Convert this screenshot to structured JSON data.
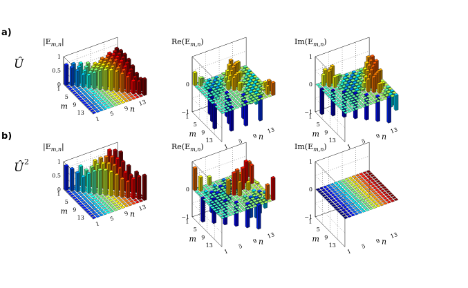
{
  "figure": {
    "row_labels": [
      {
        "letter": "a)",
        "operator": "Û"
      },
      {
        "letter": "b)",
        "operator": "Û",
        "superscript": "2"
      }
    ]
  },
  "chart_data": [
    {
      "type": "bar3d",
      "row": 0,
      "col": 0,
      "title": "|E",
      "title_sub": "m,n",
      "title_suffix": "|",
      "zticks": [
        "1",
        "0.5",
        "0"
      ],
      "zlim": [
        0,
        1
      ],
      "m_ticks": [
        "1",
        "5",
        "9",
        "13"
      ],
      "n_ticks": [
        "1",
        "5",
        "9",
        "13"
      ],
      "xlabel": "m",
      "ylabel": "n",
      "pattern": "U_abs",
      "colormap": "jet"
    },
    {
      "type": "bar3d",
      "row": 0,
      "col": 1,
      "title": "Re(E",
      "title_sub": "m,n",
      "title_suffix": ")",
      "zticks": [
        "0",
        "−1"
      ],
      "zlim": [
        -1,
        1
      ],
      "m_ticks": [
        "1",
        "5",
        "9",
        "13"
      ],
      "n_ticks": [
        "1",
        "5",
        "9",
        "13"
      ],
      "xlabel": "m",
      "ylabel": "n",
      "pattern": "U_re",
      "colormap": "jet"
    },
    {
      "type": "bar3d",
      "row": 0,
      "col": 2,
      "title": "Im(E",
      "title_sub": "m,n",
      "title_suffix": ")",
      "zticks": [
        "1",
        "0",
        "−1"
      ],
      "zlim": [
        -1,
        1
      ],
      "m_ticks": [
        "1",
        "5",
        "9",
        "13"
      ],
      "n_ticks": [
        "1",
        "5",
        "9",
        "13"
      ],
      "xlabel": "m",
      "ylabel": "n",
      "pattern": "U_im",
      "colormap": "jet"
    },
    {
      "type": "bar3d",
      "row": 1,
      "col": 0,
      "title": "|E",
      "title_sub": "m,n",
      "title_suffix": "|",
      "zticks": [
        "1",
        "0.5",
        "0"
      ],
      "zlim": [
        0,
        1
      ],
      "m_ticks": [
        "1",
        "5",
        "9",
        "13"
      ],
      "n_ticks": [
        "1",
        "5",
        "9",
        "13"
      ],
      "xlabel": "m",
      "ylabel": "n",
      "pattern": "U2_abs",
      "colormap": "jet"
    },
    {
      "type": "bar3d",
      "row": 1,
      "col": 1,
      "title": "Re(E",
      "title_sub": "m,n",
      "title_suffix": ")",
      "zticks": [
        "0",
        "−1"
      ],
      "zlim": [
        -1,
        1
      ],
      "m_ticks": [
        "1",
        "5",
        "9",
        "13"
      ],
      "n_ticks": [
        "1",
        "5",
        "9",
        "13"
      ],
      "xlabel": "m",
      "ylabel": "n",
      "pattern": "U2_re",
      "colormap": "jet"
    },
    {
      "type": "bar3d",
      "row": 1,
      "col": 2,
      "title": "Im(E",
      "title_sub": "m,n",
      "title_suffix": ")",
      "zticks": [
        "1",
        "0",
        "−1"
      ],
      "zlim": [
        -1,
        1
      ],
      "m_ticks": [
        "1",
        "5",
        "9",
        "13"
      ],
      "n_ticks": [
        "1",
        "5",
        "9",
        "13"
      ],
      "xlabel": "m",
      "ylabel": "n",
      "pattern": "U2_im",
      "colormap": "jet"
    }
  ]
}
